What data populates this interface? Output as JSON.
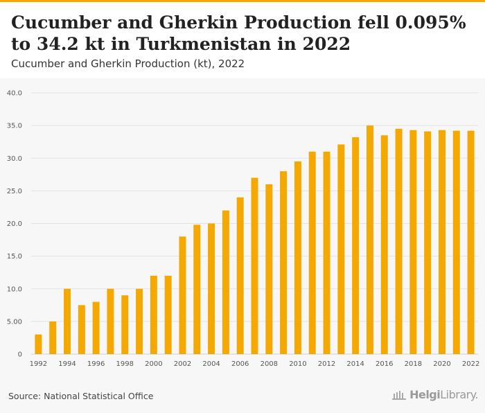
{
  "header": {
    "title": "Cucumber and Gherkin Production fell 0.095% to 34.2 kt in Turkmenistan in 2022",
    "subtitle": "Cucumber and Gherkin Production (kt), 2022"
  },
  "footer": {
    "source": "Source: National Statistical Office",
    "brand_prefix": "Helgi",
    "brand_suffix": "Library."
  },
  "colors": {
    "bar": "#f5a800",
    "accent": "#f5a800",
    "grid": "#e3e3e3",
    "plot_background": "#f7f7f7"
  },
  "chart_data": {
    "type": "bar",
    "categories": [
      "1992",
      "1993",
      "1994",
      "1995",
      "1996",
      "1997",
      "1998",
      "1999",
      "2000",
      "2001",
      "2002",
      "2003",
      "2004",
      "2005",
      "2006",
      "2007",
      "2008",
      "2009",
      "2010",
      "2011",
      "2012",
      "2013",
      "2014",
      "2015",
      "2016",
      "2017",
      "2018",
      "2019",
      "2020",
      "2021",
      "2022"
    ],
    "values": [
      3.0,
      5.0,
      10.0,
      7.5,
      8.0,
      10.0,
      9.0,
      10.0,
      12.0,
      12.0,
      18.0,
      19.8,
      20.0,
      22.0,
      24.0,
      27.0,
      26.0,
      28.0,
      29.5,
      31.0,
      31.0,
      32.1,
      33.2,
      35.0,
      33.5,
      34.5,
      34.3,
      34.1,
      34.3,
      34.2,
      34.2
    ],
    "x_tick_labels": [
      "1992",
      "1994",
      "1996",
      "1998",
      "2000",
      "2002",
      "2004",
      "2006",
      "2008",
      "2010",
      "2012",
      "2014",
      "2016",
      "2018",
      "2020",
      "2022"
    ],
    "y_tick_labels": [
      "0",
      "5.00",
      "10.0",
      "15.0",
      "20.0",
      "25.0",
      "30.0",
      "35.0",
      "40.0"
    ],
    "y_ticks": [
      0,
      5,
      10,
      15,
      20,
      25,
      30,
      35,
      40
    ],
    "ylim": [
      0,
      40
    ],
    "grid": true,
    "legend": "none"
  }
}
